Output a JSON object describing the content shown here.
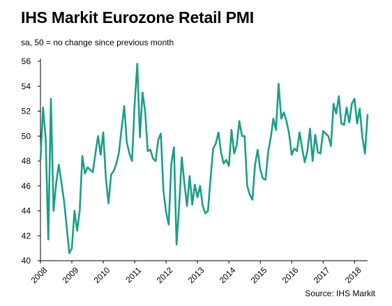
{
  "page": {
    "title": "IHS Markit Eurozone Retail PMI",
    "subtitle": "sa, 50 = no change since previous month",
    "source": "Source: IHS Markit"
  },
  "chart_data": {
    "type": "line",
    "title": "IHS Markit Eurozone Retail PMI",
    "subtitle": "sa, 50 = no change since previous month",
    "ylim": [
      40,
      56
    ],
    "yticks": [
      40,
      42,
      44,
      46,
      48,
      50,
      52,
      54,
      56
    ],
    "xlim": [
      "2008-01",
      "2018-06"
    ],
    "xticks": [
      "2008",
      "2009",
      "2010",
      "2011",
      "2012",
      "2013",
      "2014",
      "2015",
      "2016",
      "2017",
      "2018"
    ],
    "grid": false,
    "legend": "none",
    "line_color": "#1a9e88",
    "series": [
      {
        "x": [
          "2008-01",
          "2008-02",
          "2008-03",
          "2008-04",
          "2008-05",
          "2008-06",
          "2008-07",
          "2008-08",
          "2008-09",
          "2008-10",
          "2008-11",
          "2008-12",
          "2009-01",
          "2009-02",
          "2009-03",
          "2009-04",
          "2009-05",
          "2009-06",
          "2009-07",
          "2009-08",
          "2009-09",
          "2009-10",
          "2009-11",
          "2009-12",
          "2010-01",
          "2010-02",
          "2010-03",
          "2010-04",
          "2010-05",
          "2010-06",
          "2010-07",
          "2010-08",
          "2010-09",
          "2010-10",
          "2010-11",
          "2010-12",
          "2011-01",
          "2011-02",
          "2011-03",
          "2011-04",
          "2011-05",
          "2011-06",
          "2011-07",
          "2011-08",
          "2011-09",
          "2011-10",
          "2011-11",
          "2011-12",
          "2012-01",
          "2012-02",
          "2012-03",
          "2012-04",
          "2012-05",
          "2012-06",
          "2012-07",
          "2012-08",
          "2012-09",
          "2012-10",
          "2012-11",
          "2012-12",
          "2013-01",
          "2013-02",
          "2013-03",
          "2013-04",
          "2013-05",
          "2013-06",
          "2013-07",
          "2013-08",
          "2013-09",
          "2013-10",
          "2013-11",
          "2013-12",
          "2014-01",
          "2014-02",
          "2014-03",
          "2014-04",
          "2014-05",
          "2014-06",
          "2014-07",
          "2014-08",
          "2014-09",
          "2014-10",
          "2014-11",
          "2014-12",
          "2015-01",
          "2015-02",
          "2015-03",
          "2015-04",
          "2015-05",
          "2015-06",
          "2015-07",
          "2015-08",
          "2015-09",
          "2015-10",
          "2015-11",
          "2015-12",
          "2016-01",
          "2016-02",
          "2016-03",
          "2016-04",
          "2016-05",
          "2016-06",
          "2016-07",
          "2016-08",
          "2016-09",
          "2016-10",
          "2016-11",
          "2016-12",
          "2017-01",
          "2017-02",
          "2017-03",
          "2017-04",
          "2017-05",
          "2017-06",
          "2017-07",
          "2017-08",
          "2017-09",
          "2017-10",
          "2017-11",
          "2017-12",
          "2018-01",
          "2018-02",
          "2018-03",
          "2018-04",
          "2018-05",
          "2018-06"
        ],
        "values": [
          48.1,
          52.3,
          49.8,
          41.7,
          53.0,
          44.0,
          46.2,
          47.7,
          46.3,
          44.8,
          42.8,
          40.6,
          41.0,
          44.0,
          42.4,
          44.0,
          48.4,
          47.0,
          47.5,
          47.3,
          47.1,
          48.6,
          50.0,
          48.5,
          50.3,
          46.6,
          44.6,
          46.9,
          47.2,
          47.8,
          48.7,
          50.6,
          52.4,
          49.5,
          48.6,
          48.0,
          52.6,
          55.8,
          49.9,
          53.5,
          52.0,
          48.8,
          48.9,
          48.2,
          48.0,
          49.7,
          50.2,
          45.6,
          43.9,
          42.9,
          47.8,
          49.1,
          41.3,
          44.4,
          48.3,
          46.2,
          44.4,
          46.8,
          44.5,
          46.1,
          45.1,
          46.0,
          44.4,
          43.8,
          44.0,
          46.6,
          49.0,
          49.4,
          50.3,
          48.7,
          47.8,
          48.1,
          47.6,
          50.5,
          48.6,
          49.3,
          51.2,
          50.0,
          50.0,
          46.0,
          45.3,
          44.9,
          47.7,
          48.9,
          47.3,
          46.6,
          46.5,
          48.7,
          49.9,
          51.4,
          50.5,
          54.2,
          51.4,
          51.9,
          51.2,
          50.2,
          48.5,
          49.0,
          48.8,
          50.3,
          49.0,
          47.9,
          48.8,
          50.6,
          48.0,
          50.1,
          48.7,
          48.6,
          50.4,
          50.2,
          50.0,
          49.2,
          52.6,
          51.8,
          53.2,
          51.0,
          50.9,
          52.3,
          51.1,
          52.6,
          53.0,
          51.0,
          52.2,
          49.9,
          48.6,
          51.7
        ]
      }
    ]
  }
}
